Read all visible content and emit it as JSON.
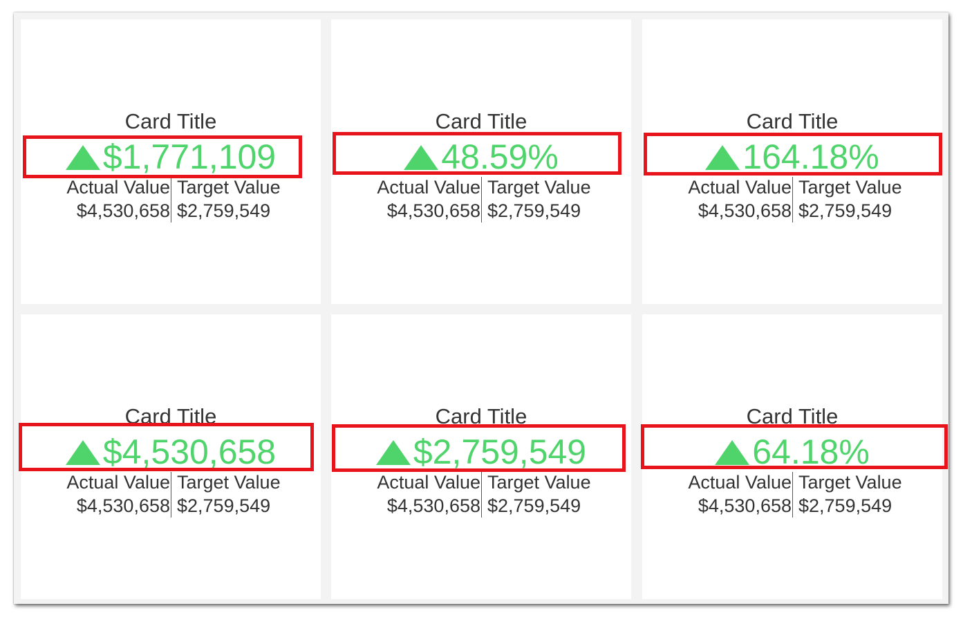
{
  "colors": {
    "positive": "#4fd46b",
    "highlight_border": "#e8141c",
    "text": "#333333"
  },
  "cards": [
    {
      "title": "Card Title",
      "indicator_icon": "triangle-up-icon",
      "value": "$1,771,109",
      "actual_label": "Actual Value",
      "actual_value": "$4,530,658",
      "target_label": "Target Value",
      "target_value": "$2,759,549"
    },
    {
      "title": "Card Title",
      "indicator_icon": "triangle-up-icon",
      "value": "48.59%",
      "actual_label": "Actual Value",
      "actual_value": "$4,530,658",
      "target_label": "Target Value",
      "target_value": "$2,759,549"
    },
    {
      "title": "Card Title",
      "indicator_icon": "triangle-up-icon",
      "value": "164.18%",
      "actual_label": "Actual Value",
      "actual_value": "$4,530,658",
      "target_label": "Target Value",
      "target_value": "$2,759,549"
    },
    {
      "title": "Card Title",
      "indicator_icon": "triangle-up-icon",
      "value": "$4,530,658",
      "actual_label": "Actual Value",
      "actual_value": "$4,530,658",
      "target_label": "Target Value",
      "target_value": "$2,759,549"
    },
    {
      "title": "Card Title",
      "indicator_icon": "triangle-up-icon",
      "value": "$2,759,549",
      "actual_label": "Actual Value",
      "actual_value": "$4,530,658",
      "target_label": "Target Value",
      "target_value": "$2,759,549"
    },
    {
      "title": "Card Title",
      "indicator_icon": "triangle-up-icon",
      "value": "64.18%",
      "actual_label": "Actual Value",
      "actual_value": "$4,530,658",
      "target_label": "Target Value",
      "target_value": "$2,759,549"
    }
  ]
}
